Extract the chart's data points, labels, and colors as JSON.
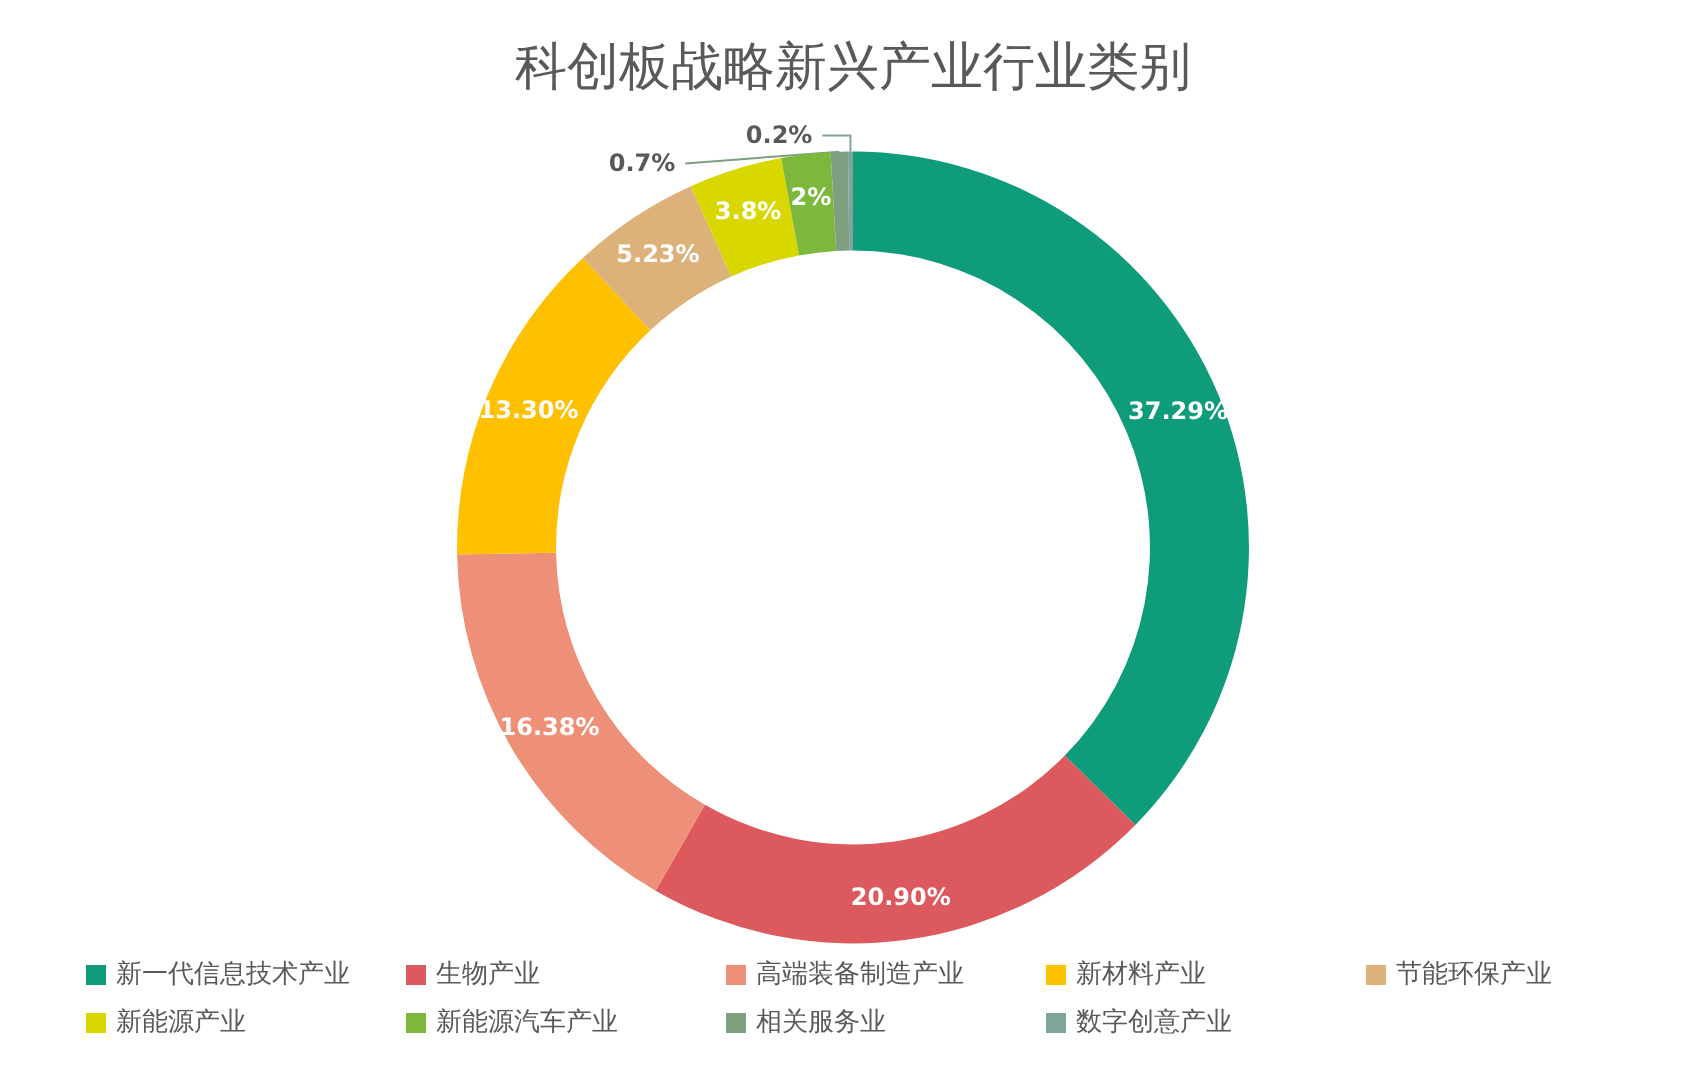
{
  "chart_data": {
    "type": "donut",
    "title": "科创板战略新兴产业行业类别",
    "categories": [
      "新一代信息技术产业",
      "生物产业",
      "高端装备制造产业",
      "新材料产业",
      "节能环保产业",
      "新能源产业",
      "新能源汽车产业",
      "相关服务业",
      "数字创意产业"
    ],
    "values": [
      37.29,
      20.9,
      16.38,
      13.3,
      5.23,
      3.8,
      2,
      0.7,
      0.2
    ],
    "value_labels": [
      "37.29%",
      "20.90%",
      "16.38%",
      "13.30%",
      "5.23%",
      "3.8%",
      "2%",
      "0.7%",
      "0.2%"
    ],
    "colors": [
      "#0f9c7a",
      "#dc5a5e",
      "#ee8f78",
      "#ffc000",
      "#ddb27a",
      "#d8d800",
      "#7cb83c",
      "#7fa080",
      "#7fa59a"
    ],
    "legend": "bottom"
  }
}
